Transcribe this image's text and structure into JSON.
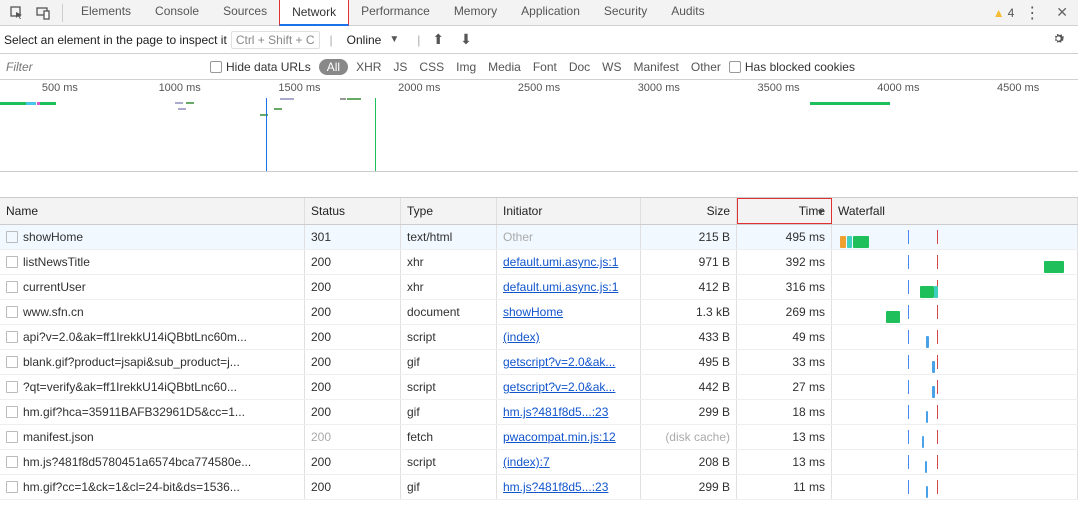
{
  "topTabs": [
    "Elements",
    "Console",
    "Sources",
    "Network",
    "Performance",
    "Memory",
    "Application",
    "Security",
    "Audits"
  ],
  "activeTab": "Network",
  "warningCount": "4",
  "toolbar1": {
    "inspectLabel": "Select an element in the page to inspect it",
    "shortcut": "Ctrl + Shift + C",
    "online": "Online"
  },
  "toolbar2": {
    "filterPlaceholder": "Filter",
    "hideData": "Hide data URLs",
    "allPill": "All",
    "filters": [
      "XHR",
      "JS",
      "CSS",
      "Img",
      "Media",
      "Font",
      "Doc",
      "WS",
      "Manifest",
      "Other"
    ],
    "blocked": "Has blocked cookies"
  },
  "timelineTicks": [
    "500 ms",
    "1000 ms",
    "1500 ms",
    "2000 ms",
    "2500 ms",
    "3000 ms",
    "3500 ms",
    "4000 ms",
    "4500 ms"
  ],
  "columns": {
    "name": "Name",
    "status": "Status",
    "type": "Type",
    "initiator": "Initiator",
    "size": "Size",
    "time": "Time",
    "waterfall": "Waterfall"
  },
  "rows": [
    {
      "name": "showHome",
      "status": "301",
      "type": "text/html",
      "initiator": "Other",
      "initiatorLink": false,
      "size": "215 B",
      "time": "495 ms",
      "selected": true,
      "wf": [
        {
          "cls": "orange",
          "l": 2,
          "w": 6
        },
        {
          "cls": "teal",
          "l": 9,
          "w": 5
        },
        {
          "cls": "green",
          "l": 15,
          "w": 16
        }
      ]
    },
    {
      "name": "listNewsTitle",
      "status": "200",
      "type": "xhr",
      "initiator": "default.umi.async.js:1",
      "initiatorLink": true,
      "size": "971 B",
      "time": "392 ms",
      "wf": [
        {
          "cls": "green",
          "l": 206,
          "w": 20
        }
      ]
    },
    {
      "name": "currentUser",
      "status": "200",
      "type": "xhr",
      "initiator": "default.umi.async.js:1",
      "initiatorLink": true,
      "size": "412 B",
      "time": "316 ms",
      "wf": [
        {
          "cls": "green",
          "l": 82,
          "w": 14
        },
        {
          "cls": "teal",
          "l": 96,
          "w": 4
        }
      ]
    },
    {
      "name": "www.sfn.cn",
      "status": "200",
      "type": "document",
      "initiator": "showHome",
      "initiatorLink": true,
      "size": "1.3 kB",
      "time": "269 ms",
      "wf": [
        {
          "cls": "green",
          "l": 48,
          "w": 14
        }
      ]
    },
    {
      "name": "api?v=2.0&ak=ff1IrekkU14iQBbtLnc60m...",
      "status": "200",
      "type": "script",
      "initiator": "(index)",
      "initiatorLink": true,
      "size": "433 B",
      "time": "49 ms",
      "wf": [
        {
          "cls": "blue",
          "l": 88,
          "w": 3
        }
      ]
    },
    {
      "name": "blank.gif?product=jsapi&sub_product=j...",
      "status": "200",
      "type": "gif",
      "initiator": "getscript?v=2.0&ak...",
      "initiatorLink": true,
      "size": "495 B",
      "time": "33 ms",
      "wf": [
        {
          "cls": "blue",
          "l": 94,
          "w": 3
        }
      ]
    },
    {
      "name": "?qt=verify&ak=ff1IrekkU14iQBbtLnc60...",
      "status": "200",
      "type": "script",
      "initiator": "getscript?v=2.0&ak...",
      "initiatorLink": true,
      "size": "442 B",
      "time": "27 ms",
      "wf": [
        {
          "cls": "blue",
          "l": 94,
          "w": 3
        }
      ]
    },
    {
      "name": "hm.gif?hca=35911BAFB32961D5&cc=1...",
      "status": "200",
      "type": "gif",
      "initiator": "hm.js?481f8d5...:23",
      "initiatorLink": true,
      "size": "299 B",
      "time": "18 ms",
      "wf": [
        {
          "cls": "blue",
          "l": 88,
          "w": 2
        }
      ]
    },
    {
      "name": "manifest.json",
      "status": "200",
      "statusMuted": true,
      "type": "fetch",
      "initiator": "pwacompat.min.js:12",
      "initiatorLink": true,
      "size": "(disk cache)",
      "sizeCached": true,
      "time": "13 ms",
      "wf": [
        {
          "cls": "blue",
          "l": 84,
          "w": 2
        }
      ]
    },
    {
      "name": "hm.js?481f8d5780451a6574bca774580e...",
      "status": "200",
      "type": "script",
      "initiator": "(index):7",
      "initiatorLink": true,
      "size": "208 B",
      "time": "13 ms",
      "wf": [
        {
          "cls": "blue",
          "l": 87,
          "w": 2
        }
      ]
    },
    {
      "name": "hm.gif?cc=1&ck=1&cl=24-bit&ds=1536...",
      "status": "200",
      "type": "gif",
      "initiator": "hm.js?481f8d5...:23",
      "initiatorLink": true,
      "size": "299 B",
      "time": "11 ms",
      "wf": [
        {
          "cls": "blue",
          "l": 88,
          "w": 2
        }
      ]
    }
  ],
  "waterfallLines": {
    "blue": 70,
    "red": 99
  }
}
